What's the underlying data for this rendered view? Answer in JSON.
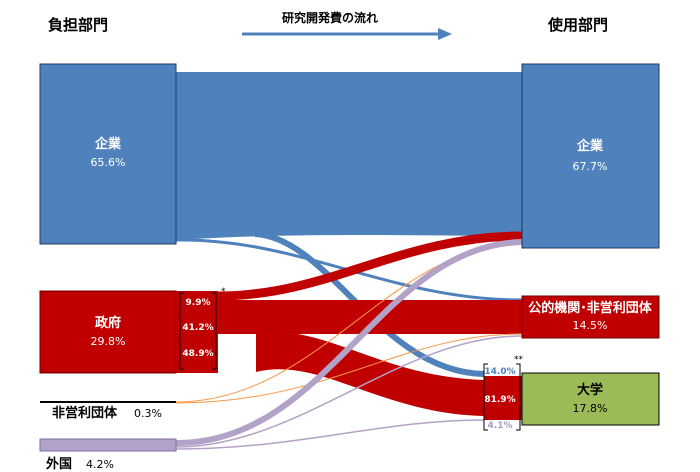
{
  "headers": {
    "left": "負担部門",
    "center": "研究開発費の流れ",
    "right": "使用部門"
  },
  "sources": [
    {
      "name": "企業",
      "pct": "65.6%",
      "color": "#4f81bd"
    },
    {
      "name": "政府",
      "pct": "29.8%",
      "color": "#c00000"
    },
    {
      "name": "非営利団体",
      "pct": "0.3%",
      "color": "#000000"
    },
    {
      "name": "外国",
      "pct": "4.2%",
      "color": "#b3a2c7"
    }
  ],
  "targets": [
    {
      "name": "企業",
      "pct": "67.7%",
      "color": "#4f81bd"
    },
    {
      "name": "公的機関･非営利団体",
      "pct": "14.5%",
      "color": "#c00000"
    },
    {
      "name": "大学",
      "pct": "17.8%",
      "color": "#9bbb59"
    }
  ],
  "government_split": [
    "9.9%",
    "41.2%",
    "48.9%"
  ],
  "university_split": [
    "14.0%",
    "81.9%",
    "4.1%"
  ],
  "markers": {
    "government": "*",
    "university": "**"
  }
}
